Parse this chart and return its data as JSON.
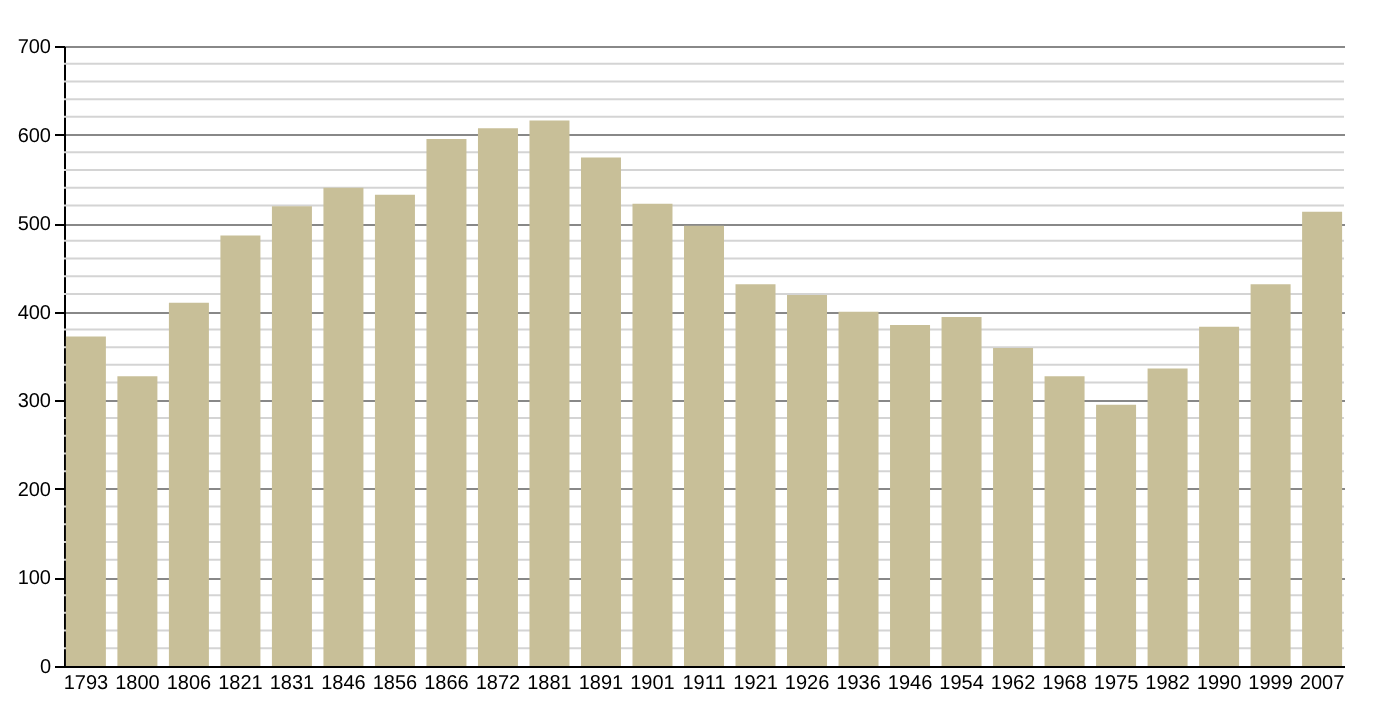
{
  "chart_data": {
    "type": "bar",
    "categories": [
      "1793",
      "1800",
      "1806",
      "1821",
      "1831",
      "1846",
      "1856",
      "1866",
      "1872",
      "1881",
      "1891",
      "1901",
      "1911",
      "1921",
      "1926",
      "1936",
      "1946",
      "1954",
      "1962",
      "1968",
      "1975",
      "1982",
      "1990",
      "1999",
      "2007"
    ],
    "values": [
      372,
      327,
      410,
      486,
      519,
      540,
      532,
      595,
      607,
      616,
      574,
      522,
      497,
      431,
      419,
      400,
      385,
      394,
      359,
      327,
      295,
      336,
      383,
      431,
      513
    ],
    "color": "#c8bf98",
    "ylim": [
      0,
      700
    ],
    "yticks": [
      0,
      100,
      200,
      300,
      400,
      500,
      600,
      700
    ],
    "grid": "y"
  }
}
